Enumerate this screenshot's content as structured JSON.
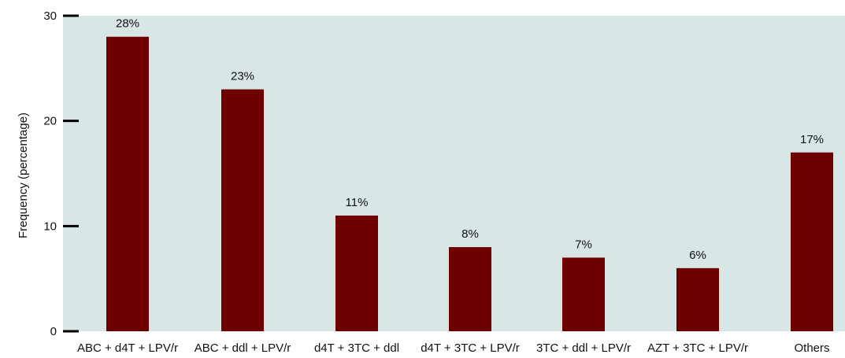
{
  "chart_data": {
    "type": "bar",
    "title": "",
    "xlabel": "",
    "ylabel": "Frequency (percentage)",
    "ylim": [
      0,
      30
    ],
    "yticks": [
      0,
      10,
      20,
      30
    ],
    "categories": [
      "ABC + d4T + LPV/r",
      "ABC + ddl + LPV/r",
      "d4T + 3TC + ddl",
      "d4T + 3TC + LPV/r",
      "3TC + ddl + LPV/r",
      "AZT + 3TC + LPV/r",
      "Others"
    ],
    "values": [
      28,
      23,
      11,
      8,
      7,
      6,
      17
    ],
    "data_labels": [
      "28%",
      "23%",
      "11%",
      "8%",
      "7%",
      "6%",
      "17%"
    ],
    "grid": false,
    "bar_color": "#6e0000",
    "plot_background": "#d9e6e6"
  }
}
